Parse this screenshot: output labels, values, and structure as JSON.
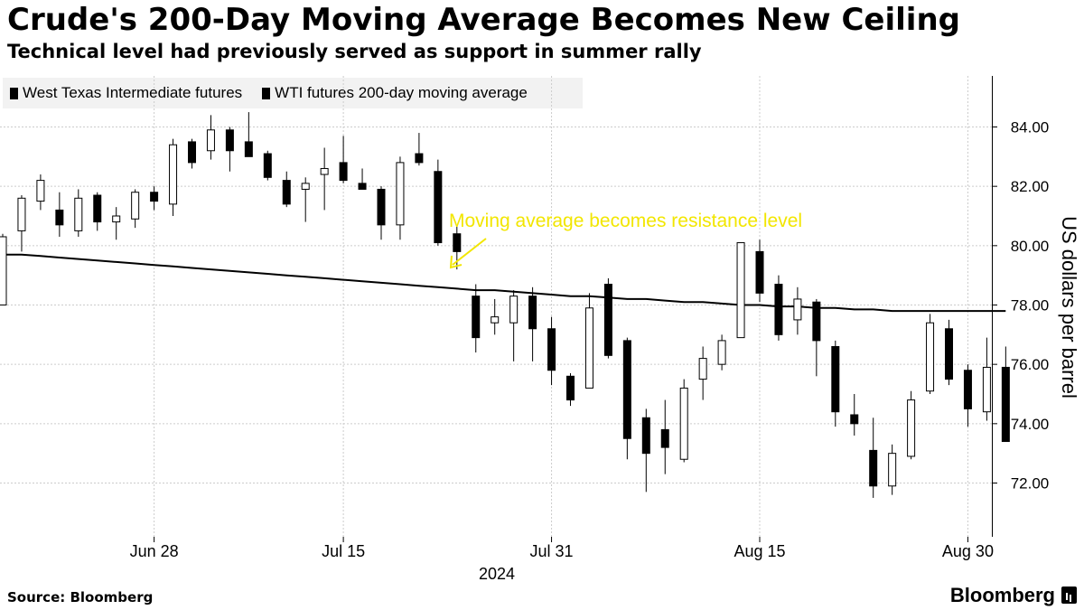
{
  "header": {
    "title": "Crude's 200-Day Moving Average Becomes New Ceiling",
    "subtitle": "Technical level had previously served as support in summer rally"
  },
  "footer": {
    "source": "Source: Bloomberg",
    "brand": "Bloomberg"
  },
  "chart_data": {
    "type": "candlestick",
    "title": "Crude's 200-Day Moving Average Becomes New Ceiling",
    "subtitle": "Technical level had previously served as support in summer rally",
    "ylabel": "US dollars per barrel",
    "xlabel": "2024",
    "ylim": [
      70.4,
      85.5
    ],
    "y_ticks": [
      72,
      74,
      76,
      78,
      80,
      82,
      84
    ],
    "y_tick_labels": [
      "72.00",
      "74.00",
      "76.00",
      "78.00",
      "80.00",
      "82.00",
      "84.00"
    ],
    "x_ticks": [
      {
        "label": "Jun 28",
        "index": 8
      },
      {
        "label": "Jul 15",
        "index": 18
      },
      {
        "label": "Jul 31",
        "index": 29
      },
      {
        "label": "Aug 15",
        "index": 40
      },
      {
        "label": "Aug 30",
        "index": 51
      }
    ],
    "year_label": "2024",
    "legend_position": "top-left",
    "grid": true,
    "legend": [
      "West Texas Intermediate futures",
      "WTI futures 200-day moving average"
    ],
    "colors": {
      "up": "#ffffff",
      "down": "#000000",
      "outline": "#000000",
      "ma": "#000000",
      "annotation": "#f2e600",
      "grid": "#cccccc"
    },
    "annotation": {
      "text": "Moving average becomes resistance level",
      "points_to_index": 22
    },
    "series": [
      {
        "name": "West Texas Intermediate futures",
        "type": "ohlc",
        "data": [
          {
            "date": "Jun 17",
            "open": 78.0,
            "high": 80.4,
            "low": 78.0,
            "close": 80.3
          },
          {
            "date": "Jun 18",
            "open": 80.5,
            "high": 81.7,
            "low": 79.8,
            "close": 81.6
          },
          {
            "date": "Jun 19",
            "open": 81.5,
            "high": 82.4,
            "low": 81.2,
            "close": 82.2
          },
          {
            "date": "Jun 20",
            "open": 81.2,
            "high": 81.8,
            "low": 80.3,
            "close": 80.7
          },
          {
            "date": "Jun 21",
            "open": 80.5,
            "high": 81.9,
            "low": 80.3,
            "close": 81.6
          },
          {
            "date": "Jun 24",
            "open": 81.7,
            "high": 81.8,
            "low": 80.5,
            "close": 80.8
          },
          {
            "date": "Jun 25",
            "open": 80.8,
            "high": 81.3,
            "low": 80.2,
            "close": 81.0
          },
          {
            "date": "Jun 26",
            "open": 80.9,
            "high": 81.9,
            "low": 80.6,
            "close": 81.8
          },
          {
            "date": "Jun 27",
            "open": 81.8,
            "high": 82.0,
            "low": 81.2,
            "close": 81.5
          },
          {
            "date": "Jun 28",
            "open": 81.4,
            "high": 83.6,
            "low": 81.0,
            "close": 83.4
          },
          {
            "date": "Jul 1",
            "open": 83.5,
            "high": 83.6,
            "low": 82.6,
            "close": 82.8
          },
          {
            "date": "Jul 2",
            "open": 83.2,
            "high": 84.4,
            "low": 82.9,
            "close": 83.9
          },
          {
            "date": "Jul 3",
            "open": 83.9,
            "high": 84.0,
            "low": 82.5,
            "close": 83.2
          },
          {
            "date": "Jul 5",
            "open": 83.5,
            "high": 84.5,
            "low": 83.0,
            "close": 83.0
          },
          {
            "date": "Jul 8",
            "open": 83.1,
            "high": 83.2,
            "low": 82.2,
            "close": 82.3
          },
          {
            "date": "Jul 9",
            "open": 82.2,
            "high": 82.5,
            "low": 81.3,
            "close": 81.4
          },
          {
            "date": "Jul 10",
            "open": 81.9,
            "high": 82.3,
            "low": 80.8,
            "close": 82.1
          },
          {
            "date": "Jul 11",
            "open": 82.4,
            "high": 83.3,
            "low": 81.2,
            "close": 82.6
          },
          {
            "date": "Jul 12",
            "open": 82.8,
            "high": 83.7,
            "low": 82.1,
            "close": 82.2
          },
          {
            "date": "Jul 15",
            "open": 82.1,
            "high": 82.6,
            "low": 81.9,
            "close": 81.9
          },
          {
            "date": "Jul 16",
            "open": 81.9,
            "high": 82.0,
            "low": 80.2,
            "close": 80.7
          },
          {
            "date": "Jul 17",
            "open": 80.7,
            "high": 83.0,
            "low": 80.2,
            "close": 82.8
          },
          {
            "date": "Jul 18",
            "open": 83.1,
            "high": 83.8,
            "low": 82.7,
            "close": 82.8
          },
          {
            "date": "Jul 19",
            "open": 82.5,
            "high": 82.9,
            "low": 80.0,
            "close": 80.1
          },
          {
            "date": "Jul 22",
            "open": 80.4,
            "high": 80.7,
            "low": 79.2,
            "close": 79.8
          },
          {
            "date": "Jul 23",
            "open": 78.3,
            "high": 78.7,
            "low": 76.4,
            "close": 76.9
          },
          {
            "date": "Jul 24",
            "open": 77.4,
            "high": 78.2,
            "low": 77.0,
            "close": 77.6
          },
          {
            "date": "Jul 25",
            "open": 77.4,
            "high": 78.5,
            "low": 76.1,
            "close": 78.3
          },
          {
            "date": "Jul 26",
            "open": 78.3,
            "high": 78.6,
            "low": 76.1,
            "close": 77.2
          },
          {
            "date": "Jul 29",
            "open": 77.2,
            "high": 77.6,
            "low": 75.3,
            "close": 75.8
          },
          {
            "date": "Jul 30",
            "open": 75.6,
            "high": 75.7,
            "low": 74.6,
            "close": 74.8
          },
          {
            "date": "Jul 31",
            "open": 75.2,
            "high": 78.4,
            "low": 75.2,
            "close": 77.9
          },
          {
            "date": "Aug 1",
            "open": 78.7,
            "high": 78.9,
            "low": 76.2,
            "close": 76.3
          },
          {
            "date": "Aug 2",
            "open": 76.8,
            "high": 76.9,
            "low": 72.8,
            "close": 73.5
          },
          {
            "date": "Aug 5",
            "open": 74.2,
            "high": 74.5,
            "low": 71.7,
            "close": 73.0
          },
          {
            "date": "Aug 6",
            "open": 73.8,
            "high": 74.8,
            "low": 72.3,
            "close": 73.2
          },
          {
            "date": "Aug 7",
            "open": 72.8,
            "high": 75.5,
            "low": 72.7,
            "close": 75.2
          },
          {
            "date": "Aug 8",
            "open": 75.5,
            "high": 76.6,
            "low": 74.8,
            "close": 76.2
          },
          {
            "date": "Aug 9",
            "open": 76.0,
            "high": 77.0,
            "low": 75.8,
            "close": 76.8
          },
          {
            "date": "Aug 12",
            "open": 76.9,
            "high": 80.1,
            "low": 76.9,
            "close": 80.1
          },
          {
            "date": "Aug 13",
            "open": 79.8,
            "high": 80.2,
            "low": 78.1,
            "close": 78.4
          },
          {
            "date": "Aug 14",
            "open": 78.7,
            "high": 79.0,
            "low": 76.8,
            "close": 77.0
          },
          {
            "date": "Aug 15",
            "open": 77.5,
            "high": 78.6,
            "low": 77.0,
            "close": 78.2
          },
          {
            "date": "Aug 16",
            "open": 78.1,
            "high": 78.2,
            "low": 75.6,
            "close": 76.8
          },
          {
            "date": "Aug 19",
            "open": 76.6,
            "high": 76.8,
            "low": 73.9,
            "close": 74.4
          },
          {
            "date": "Aug 20",
            "open": 74.3,
            "high": 75.0,
            "low": 73.6,
            "close": 74.0
          },
          {
            "date": "Aug 21",
            "open": 73.1,
            "high": 74.2,
            "low": 71.5,
            "close": 71.9
          },
          {
            "date": "Aug 22",
            "open": 71.9,
            "high": 73.3,
            "low": 71.6,
            "close": 73.0
          },
          {
            "date": "Aug 23",
            "open": 72.9,
            "high": 75.1,
            "low": 72.8,
            "close": 74.8
          },
          {
            "date": "Aug 26",
            "open": 75.1,
            "high": 77.7,
            "low": 75.0,
            "close": 77.4
          },
          {
            "date": "Aug 27",
            "open": 77.2,
            "high": 77.5,
            "low": 75.3,
            "close": 75.5
          },
          {
            "date": "Aug 28",
            "open": 75.8,
            "high": 76.0,
            "low": 73.9,
            "close": 74.5
          },
          {
            "date": "Aug 29",
            "open": 74.4,
            "high": 76.9,
            "low": 74.1,
            "close": 75.9
          },
          {
            "date": "Aug 30",
            "open": 75.9,
            "high": 76.6,
            "low": 73.4,
            "close": 73.4
          }
        ]
      },
      {
        "name": "WTI futures 200-day moving average",
        "type": "line",
        "values": [
          79.7,
          79.7,
          79.65,
          79.6,
          79.55,
          79.5,
          79.45,
          79.4,
          79.35,
          79.3,
          79.25,
          79.2,
          79.15,
          79.1,
          79.05,
          79.0,
          78.95,
          78.9,
          78.85,
          78.8,
          78.75,
          78.7,
          78.65,
          78.6,
          78.55,
          78.5,
          78.5,
          78.45,
          78.4,
          78.35,
          78.3,
          78.3,
          78.25,
          78.2,
          78.2,
          78.15,
          78.1,
          78.1,
          78.05,
          78.0,
          78.0,
          77.95,
          77.95,
          77.9,
          77.9,
          77.85,
          77.85,
          77.8,
          77.8,
          77.8,
          77.8,
          77.8,
          77.8,
          77.8
        ]
      }
    ]
  }
}
